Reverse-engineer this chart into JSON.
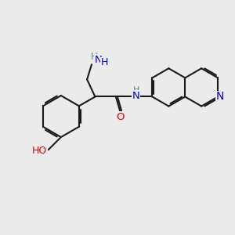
{
  "background_color": "#ebebeb",
  "bond_color": "#1a1a1a",
  "bond_width": 1.5,
  "atom_colors": {
    "N": "#0000cd",
    "O": "#dd0000",
    "C": "#1a1a1a",
    "H_label": "#4a9090"
  },
  "figsize": [
    3.0,
    3.0
  ],
  "dpi": 100,
  "xlim": [
    0,
    10
  ],
  "ylim": [
    0,
    10
  ]
}
